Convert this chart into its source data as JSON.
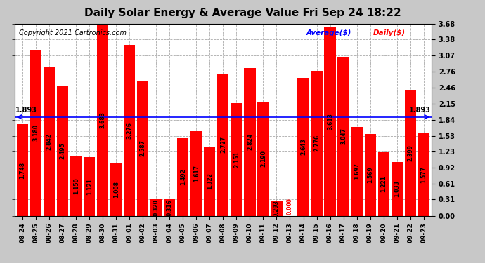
{
  "title": "Daily Solar Energy & Average Value Fri Sep 24 18:22",
  "copyright": "Copyright 2021 Cartronics.com",
  "legend_average": "Average($)",
  "legend_daily": "Daily($)",
  "average_line": 1.893,
  "categories": [
    "08-24",
    "08-25",
    "08-26",
    "08-27",
    "08-28",
    "08-29",
    "08-30",
    "08-31",
    "09-01",
    "09-02",
    "09-03",
    "09-04",
    "09-05",
    "09-06",
    "09-07",
    "09-08",
    "09-09",
    "09-10",
    "09-11",
    "09-12",
    "09-13",
    "09-14",
    "09-15",
    "09-16",
    "09-17",
    "09-18",
    "09-19",
    "09-20",
    "09-21",
    "09-22",
    "09-23"
  ],
  "values": [
    1.748,
    3.18,
    2.842,
    2.495,
    1.15,
    1.121,
    3.683,
    1.008,
    3.276,
    2.587,
    0.32,
    0.316,
    1.492,
    1.617,
    1.322,
    2.727,
    2.151,
    2.824,
    2.19,
    0.293,
    0.0,
    2.643,
    2.776,
    3.613,
    3.047,
    1.697,
    1.569,
    1.221,
    1.033,
    2.399,
    1.577
  ],
  "bar_color": "#ff0000",
  "average_line_color": "#0000ff",
  "fig_bg_color": "#c8c8c8",
  "plot_bg_color": "#ffffff",
  "ylim": [
    0.0,
    3.68
  ],
  "yticks": [
    0.0,
    0.31,
    0.61,
    0.92,
    1.23,
    1.53,
    1.84,
    2.15,
    2.46,
    2.76,
    3.07,
    3.38,
    3.68
  ],
  "title_fontsize": 11,
  "copyright_fontsize": 7,
  "tick_fontsize": 7,
  "xtick_fontsize": 6.5,
  "bar_label_fontsize": 5.5,
  "avg_label_fontsize": 7,
  "avg_label_value": "1.893",
  "grid_color": "#aaaaaa",
  "grid_linestyle": "--",
  "grid_linewidth": 0.6
}
